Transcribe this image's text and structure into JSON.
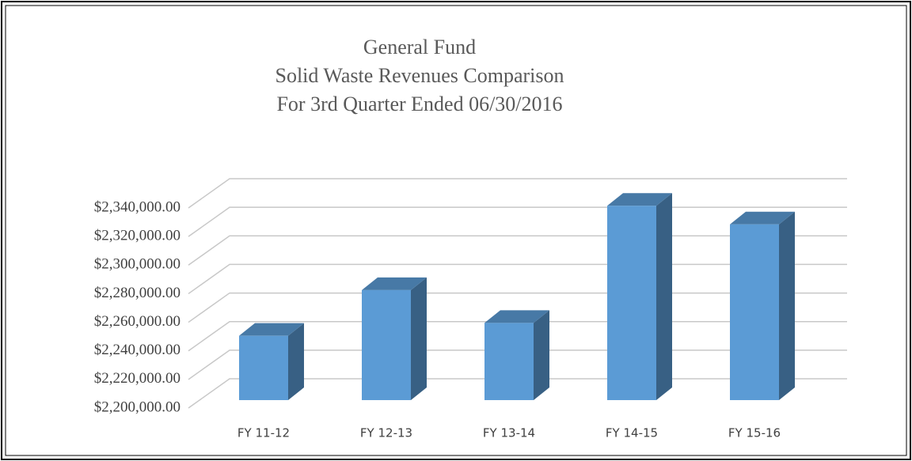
{
  "chart_data": {
    "type": "bar3d",
    "title": [
      "General Fund",
      "Solid Waste Revenues Comparison",
      "For 3rd Quarter Ended 06/30/2016"
    ],
    "categories": [
      "FY 11-12",
      "FY 12-13",
      "FY 13-14",
      "FY 14-15",
      "FY 15-16"
    ],
    "values": [
      2245000,
      2277000,
      2254000,
      2336000,
      2323000
    ],
    "color": "#5b9bd5",
    "ylim": [
      2200000,
      2340000
    ],
    "yticks": [
      {
        "value": 2200000,
        "label": "$2,200,000.00"
      },
      {
        "value": 2220000,
        "label": "$2,220,000.00"
      },
      {
        "value": 2240000,
        "label": "$2,240,000.00"
      },
      {
        "value": 2260000,
        "label": "$2,260,000.00"
      },
      {
        "value": 2280000,
        "label": "$2,280,000.00"
      },
      {
        "value": 2300000,
        "label": "$2,300,000.00"
      },
      {
        "value": 2320000,
        "label": "$2,320,000.00"
      },
      {
        "value": 2340000,
        "label": "$2,340,000.00"
      }
    ],
    "grid": true
  }
}
